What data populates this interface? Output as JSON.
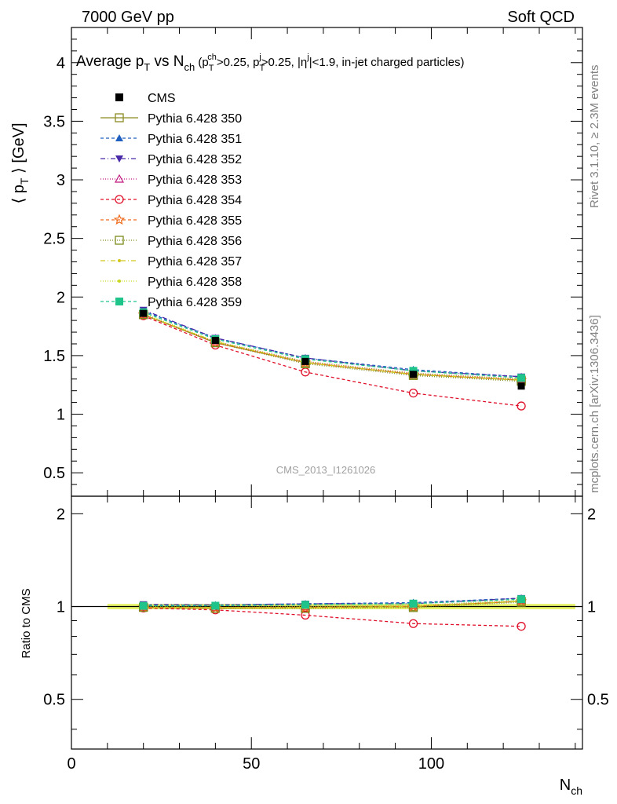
{
  "header": {
    "left": "7000 GeV pp",
    "right": "Soft QCD"
  },
  "side_labels": {
    "rivet": "Rivet 3.1.10, ≥ 2.3M events",
    "mcplots": "mcplots.cern.ch [arXiv:1306.3436]"
  },
  "watermark": "CMS_2013_I1261026",
  "chart_data": [
    {
      "type": "line",
      "title": "Average p_T vs N_ch (p_T^ch>0.25, p_T^j>0.25, |η^j|<1.9, in-jet charged particles)",
      "title_parts": {
        "main": "Average p",
        "main_sub": "T",
        "vs": " vs N",
        "vs_sub": "ch",
        "paren": " (p",
        "p1_sub": "T",
        "p1_sup": "ch",
        "p1_rest": ">0.25, p",
        "p2_sub": "T",
        "p2_sup": "j",
        "p2_rest": ">0.25, |η",
        "eta_sup": "j",
        "eta_rest": "|<1.9, in-jet charged particles)"
      },
      "ylabel": "⟨ p_T ⟩ [GeV]",
      "ylabel_parts": {
        "open": "⟨ p",
        "sub": "T",
        "close": " ⟩ [GeV]"
      },
      "xlabel": "",
      "xlim": [
        0,
        142
      ],
      "ylim": [
        0.3,
        4.3
      ],
      "yticks": [
        "0.5",
        "1",
        "1.5",
        "2",
        "2.5",
        "3",
        "3.5",
        "4"
      ],
      "x": [
        20,
        40,
        65,
        95,
        125
      ],
      "cms": {
        "name": "CMS",
        "values": [
          1.86,
          1.63,
          1.45,
          1.34,
          1.24
        ],
        "band": [
          0.0,
          0.0,
          0.0,
          0.0,
          0.0
        ]
      },
      "series": [
        {
          "name": "Pythia 6.428 350",
          "color": "#8b8b23",
          "dash": "",
          "marker": "square-open",
          "values": [
            1.85,
            1.61,
            1.44,
            1.34,
            1.29
          ]
        },
        {
          "name": "Pythia 6.428 351",
          "color": "#1f5fbf",
          "dash": "4,3",
          "marker": "triangle-up",
          "values": [
            1.88,
            1.65,
            1.48,
            1.38,
            1.32
          ]
        },
        {
          "name": "Pythia 6.428 352",
          "color": "#4a2aa8",
          "dash": "6,3,1,3",
          "marker": "triangle-down",
          "values": [
            1.89,
            1.65,
            1.48,
            1.37,
            1.32
          ]
        },
        {
          "name": "Pythia 6.428 353",
          "color": "#c0187d",
          "dash": "1,2",
          "marker": "triangle-open",
          "values": [
            1.85,
            1.62,
            1.45,
            1.35,
            1.3
          ]
        },
        {
          "name": "Pythia 6.428 354",
          "color": "#e0102a",
          "dash": "4,3",
          "marker": "circle-open",
          "values": [
            1.84,
            1.59,
            1.36,
            1.18,
            1.07
          ]
        },
        {
          "name": "Pythia 6.428 355",
          "color": "#ef6a1a",
          "dash": "4,3",
          "marker": "star-open",
          "values": [
            1.85,
            1.61,
            1.44,
            1.34,
            1.29
          ]
        },
        {
          "name": "Pythia 6.428 356",
          "color": "#7d8b1a",
          "dash": "1,2",
          "marker": "square-open",
          "values": [
            1.85,
            1.61,
            1.43,
            1.33,
            1.28
          ]
        },
        {
          "name": "Pythia 6.428 357",
          "color": "#d2c61a",
          "dash": "6,3,1,3",
          "marker": "dot",
          "values": [
            1.85,
            1.62,
            1.44,
            1.34,
            1.29
          ]
        },
        {
          "name": "Pythia 6.428 358",
          "color": "#c8d61a",
          "dash": "1,2",
          "marker": "dot",
          "values": [
            1.86,
            1.62,
            1.45,
            1.35,
            1.3
          ]
        },
        {
          "name": "Pythia 6.428 359",
          "color": "#1fc48a",
          "dash": "4,3",
          "marker": "square",
          "values": [
            1.87,
            1.64,
            1.47,
            1.37,
            1.31
          ]
        }
      ]
    },
    {
      "type": "line",
      "title": "",
      "ylabel": "Ratio to CMS",
      "xlabel": "N_ch",
      "xlabel_parts": {
        "main": "N",
        "sub": "ch"
      },
      "xlim": [
        0,
        142
      ],
      "ylim": [
        0.345,
        2.28
      ],
      "yticks": [
        "0.5",
        "1",
        "2"
      ],
      "xticks": [
        "0",
        "50",
        "100"
      ],
      "reference": 1,
      "band": {
        "x": [
          10,
          140
        ],
        "half_width": 0.02,
        "color": "#e6f36a"
      }
    }
  ]
}
